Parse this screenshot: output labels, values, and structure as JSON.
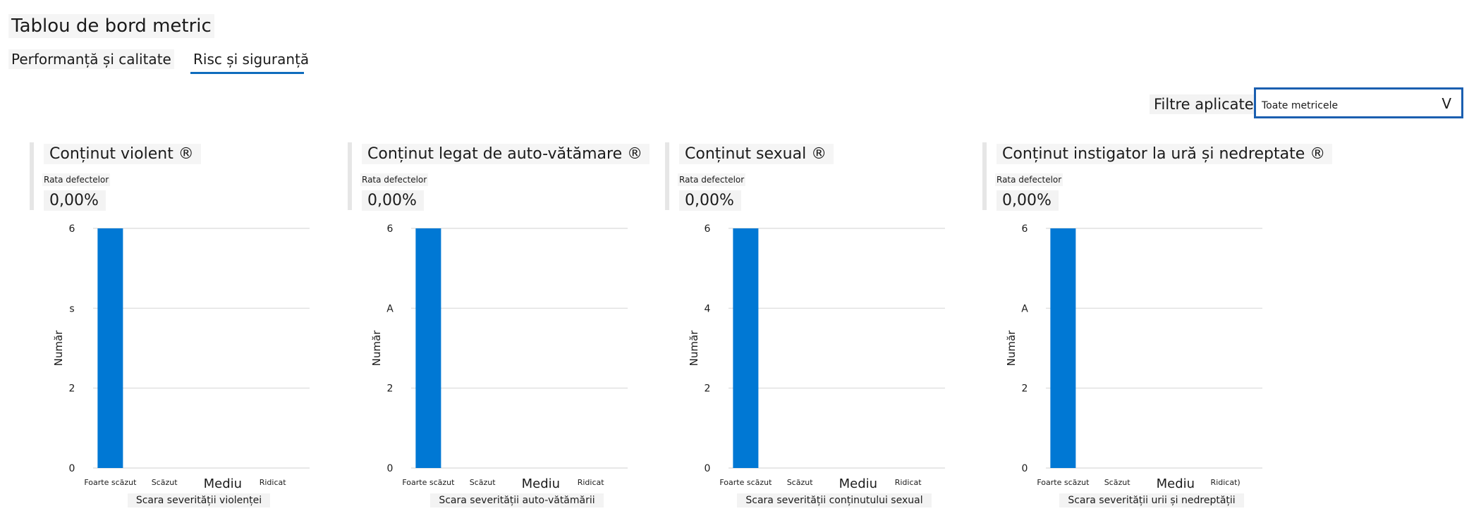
{
  "header": {
    "title": "Tablou de bord metric",
    "tabs": [
      {
        "label": "Performanță și calitate",
        "active": false
      },
      {
        "label": "Risc și siguranță",
        "active": true
      }
    ]
  },
  "filter": {
    "label": "Filtre aplicate",
    "value": "Toate metricele",
    "chevron": "V"
  },
  "colors": {
    "accent": "#0f6cbd",
    "bar": "#0078d4",
    "grid": "#e1e1e1"
  },
  "cards": [
    {
      "title": "Conținut violent ®",
      "metric_label": "Rata defectelor",
      "metric_value": "0,00%"
    },
    {
      "title": "Conținut legat de auto-vătămare ®",
      "metric_label": "Rata defectelor",
      "metric_value": "0,00%"
    },
    {
      "title": "Conținut sexual ®",
      "metric_label": "Rata defectelor",
      "metric_value": "0,00%"
    },
    {
      "title": "Conținut instigator la ură și nedreptate ®",
      "metric_label": "Rata defectelor",
      "metric_value": "0,00%"
    }
  ],
  "chart_data": [
    {
      "type": "bar",
      "categories": [
        "Foarte scăzut",
        "Scăzut",
        "Mediu",
        "Ridicat"
      ],
      "values": [
        6,
        0,
        0,
        0
      ],
      "ylim": [
        0,
        6
      ],
      "yticks": [
        "0",
        "2",
        "s",
        "6"
      ],
      "ylabel": "Număr",
      "xlabel": "Scara severității violenței",
      "grid": true
    },
    {
      "type": "bar",
      "categories": [
        "Foarte scăzut",
        "Scăzut",
        "Mediu",
        "Ridicat"
      ],
      "values": [
        6,
        0,
        0,
        0
      ],
      "ylim": [
        0,
        6
      ],
      "yticks": [
        "0",
        "2",
        "A",
        "6"
      ],
      "ylabel": "Număr",
      "xlabel": "Scara severității auto-vătămării",
      "grid": true
    },
    {
      "type": "bar",
      "categories": [
        "Foarte scăzut",
        "Scăzut",
        "Mediu",
        "Ridicat"
      ],
      "values": [
        6,
        0,
        0,
        0
      ],
      "ylim": [
        0,
        6
      ],
      "yticks": [
        "0",
        "2",
        "4",
        "6"
      ],
      "ylabel": "Număr",
      "xlabel": "Scara severității conținutului sexual",
      "grid": true
    },
    {
      "type": "bar",
      "categories": [
        "Foarte scăzut",
        "Scăzut",
        "Mediu",
        "Ridicat)"
      ],
      "values": [
        6,
        0,
        0,
        0
      ],
      "ylim": [
        0,
        6
      ],
      "yticks": [
        "0",
        "2",
        "A",
        "6"
      ],
      "ylabel": "Număr",
      "xlabel": "Scara severității urii și nedreptății",
      "grid": true
    }
  ]
}
